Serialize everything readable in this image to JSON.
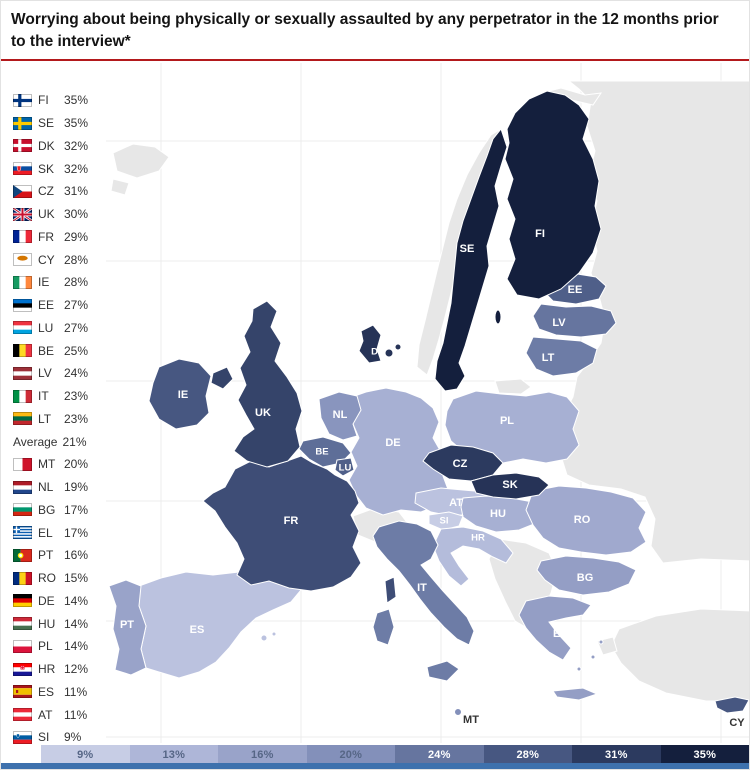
{
  "title": "Worrying about being physically or sexually assaulted by any perpetrator in the 12 months prior to the interview*",
  "chart_data": {
    "type": "choropleth",
    "title": "Worrying about being physically or sexually assaulted by any perpetrator in the 12 months prior to the interview*",
    "unit": "%",
    "value_range": [
      9,
      35
    ],
    "average": {
      "code": "AVG",
      "label": "Average",
      "value": 21,
      "pct": "21%"
    },
    "countries": [
      {
        "code": "FI",
        "value": 35,
        "pct": "35%"
      },
      {
        "code": "SE",
        "value": 35,
        "pct": "35%"
      },
      {
        "code": "DK",
        "value": 32,
        "pct": "32%"
      },
      {
        "code": "SK",
        "value": 32,
        "pct": "32%"
      },
      {
        "code": "CZ",
        "value": 31,
        "pct": "31%"
      },
      {
        "code": "UK",
        "value": 30,
        "pct": "30%"
      },
      {
        "code": "FR",
        "value": 29,
        "pct": "29%"
      },
      {
        "code": "CY",
        "value": 28,
        "pct": "28%"
      },
      {
        "code": "IE",
        "value": 28,
        "pct": "28%"
      },
      {
        "code": "EE",
        "value": 27,
        "pct": "27%"
      },
      {
        "code": "LU",
        "value": 27,
        "pct": "27%"
      },
      {
        "code": "BE",
        "value": 25,
        "pct": "25%"
      },
      {
        "code": "LV",
        "value": 24,
        "pct": "24%"
      },
      {
        "code": "IT",
        "value": 23,
        "pct": "23%"
      },
      {
        "code": "LT",
        "value": 23,
        "pct": "23%"
      },
      {
        "code": "MT",
        "value": 20,
        "pct": "20%"
      },
      {
        "code": "NL",
        "value": 19,
        "pct": "19%"
      },
      {
        "code": "BG",
        "value": 17,
        "pct": "17%"
      },
      {
        "code": "EL",
        "value": 17,
        "pct": "17%"
      },
      {
        "code": "PT",
        "value": 16,
        "pct": "16%"
      },
      {
        "code": "RO",
        "value": 15,
        "pct": "15%"
      },
      {
        "code": "DE",
        "value": 14,
        "pct": "14%"
      },
      {
        "code": "HU",
        "value": 14,
        "pct": "14%"
      },
      {
        "code": "PL",
        "value": 14,
        "pct": "14%"
      },
      {
        "code": "HR",
        "value": 12,
        "pct": "12%"
      },
      {
        "code": "ES",
        "value": 11,
        "pct": "11%"
      },
      {
        "code": "AT",
        "value": 11,
        "pct": "11%"
      },
      {
        "code": "SI",
        "value": 9,
        "pct": "9%"
      }
    ],
    "legend": {
      "position": "bottom",
      "stops": [
        {
          "value": 9,
          "label": "9%",
          "color": "#c7cde5",
          "text_dark": true
        },
        {
          "value": 13,
          "label": "13%",
          "color": "#aeb6d8",
          "text_dark": true
        },
        {
          "value": 16,
          "label": "16%",
          "color": "#99a3c9",
          "text_dark": true
        },
        {
          "value": 20,
          "label": "20%",
          "color": "#8390ba",
          "text_dark": true
        },
        {
          "value": 24,
          "label": "24%",
          "color": "#66759f",
          "text_dark": false
        },
        {
          "value": 28,
          "label": "28%",
          "color": "#475781",
          "text_dark": false
        },
        {
          "value": 31,
          "label": "31%",
          "color": "#2c3a5f",
          "text_dark": false
        },
        {
          "value": 35,
          "label": "35%",
          "color": "#141f3d",
          "text_dark": false
        }
      ]
    }
  },
  "colors": {
    "rule": "#b3191c",
    "bottom_bar": "#3e71ad",
    "noneu_land": "#e7e7e7",
    "sea": "#ffffff",
    "legend_text_dark": "#566686",
    "legend_text_light": "#ffffff",
    "map_label_dark": "#333333"
  }
}
